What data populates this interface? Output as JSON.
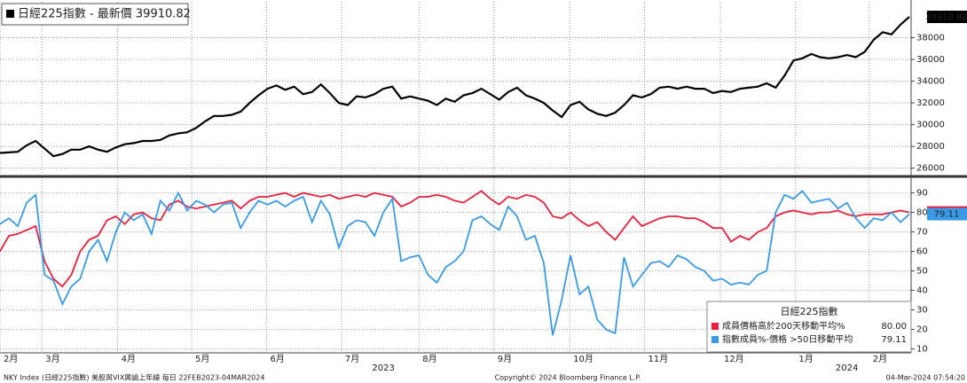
{
  "chart_data": [
    {
      "type": "line",
      "title": "日經225指數 - 最新價 39910.82",
      "color": "#000000",
      "last_label": "39910.82",
      "values": [
        27400,
        27450,
        27500,
        28100,
        28500,
        27800,
        27100,
        27300,
        27700,
        27700,
        28000,
        27700,
        27500,
        27900,
        28200,
        28300,
        28500,
        28500,
        28600,
        29000,
        29200,
        29300,
        29700,
        30300,
        30800,
        30800,
        30900,
        31200,
        32000,
        32700,
        33300,
        33600,
        33200,
        33500,
        32800,
        33000,
        33700,
        32900,
        32000,
        31800,
        32600,
        32500,
        32800,
        33300,
        33500,
        32400,
        32600,
        32400,
        32200,
        31800,
        32400,
        32100,
        32700,
        32900,
        33300,
        32800,
        32300,
        33000,
        33400,
        32700,
        32400,
        32000,
        31300,
        30700,
        31800,
        32100,
        31400,
        31000,
        30800,
        31100,
        31800,
        32700,
        32500,
        32800,
        33400,
        33500,
        33300,
        33500,
        33300,
        33300,
        32900,
        33100,
        33000,
        33300,
        33400,
        33500,
        33800,
        33400,
        34500,
        35900,
        36100,
        36500,
        36200,
        36100,
        36200,
        36400,
        36200,
        36700,
        37800,
        38500,
        38300,
        39200,
        39910.82
      ],
      "xlim": [
        0,
        102
      ],
      "ylim": [
        25400,
        41300
      ],
      "yticks": [
        26000,
        28000,
        30000,
        32000,
        34000,
        36000,
        38000
      ],
      "grid": true
    },
    {
      "type": "line",
      "legend_title": "日經225指數",
      "series": [
        {
          "name": "成員價格高於200天移動平均%",
          "color": "#e8213c",
          "last_label": "80.00",
          "values": [
            60,
            68,
            69,
            71,
            73,
            55,
            46,
            42,
            48,
            60,
            66,
            68,
            76,
            78,
            74,
            79,
            80,
            77,
            76,
            84,
            86,
            83,
            82,
            83,
            84,
            85,
            86,
            82,
            86,
            88,
            88,
            89,
            90,
            88,
            90,
            89,
            88,
            89,
            87,
            88,
            89,
            88,
            90,
            89,
            88,
            83,
            85,
            88,
            88,
            89,
            88,
            86,
            85,
            88,
            91,
            87,
            84,
            88,
            87,
            89,
            88,
            85,
            78,
            77,
            80,
            76,
            73,
            75,
            70,
            66,
            72,
            78,
            73,
            75,
            77,
            78,
            78,
            77,
            77,
            75,
            72,
            72,
            65,
            68,
            66,
            70,
            72,
            78,
            80,
            81,
            80,
            79,
            80,
            80,
            81,
            79,
            78,
            79,
            79,
            79,
            80,
            81,
            80
          ]
        },
        {
          "name": "指數成員%-價格 >50日移動平均",
          "color": "#3a9ae8",
          "last_label": "79.11",
          "values": [
            74,
            77,
            73,
            85,
            89,
            48,
            45,
            33,
            42,
            46,
            60,
            66,
            55,
            70,
            80,
            76,
            79,
            69,
            86,
            81,
            90,
            81,
            86,
            84,
            80,
            84,
            85,
            72,
            80,
            86,
            84,
            86,
            83,
            86,
            88,
            75,
            86,
            79,
            62,
            73,
            76,
            75,
            68,
            80,
            87,
            55,
            57,
            58,
            48,
            44,
            52,
            55,
            60,
            76,
            78,
            74,
            71,
            83,
            78,
            66,
            68,
            54,
            17,
            35,
            58,
            38,
            42,
            25,
            20,
            18,
            57,
            42,
            48,
            54,
            55,
            52,
            58,
            56,
            52,
            50,
            45,
            46,
            43,
            44,
            43,
            48,
            50,
            80,
            89,
            87,
            91,
            85,
            86,
            87,
            82,
            85,
            77,
            72,
            77,
            76,
            80,
            75,
            79.11
          ]
        }
      ],
      "xlim": [
        0,
        102
      ],
      "ylim": [
        8,
        98
      ],
      "yticks": [
        10,
        20,
        30,
        40,
        50,
        60,
        70,
        80,
        90
      ],
      "grid": true,
      "xticks": [
        {
          "value": 0,
          "label": "2月"
        },
        {
          "value": 4.7,
          "label": "3月"
        },
        {
          "value": 13.2,
          "label": "4月"
        },
        {
          "value": 21.5,
          "label": "5月"
        },
        {
          "value": 29.9,
          "label": "6月"
        },
        {
          "value": 38.3,
          "label": "7月"
        },
        {
          "value": 47,
          "label": "8月"
        },
        {
          "value": 55.4,
          "label": "9月"
        },
        {
          "value": 63.9,
          "label": "10月"
        },
        {
          "value": 72.3,
          "label": "11月"
        },
        {
          "value": 80.8,
          "label": "12月"
        },
        {
          "value": 89.2,
          "label": "1月"
        },
        {
          "value": 97.5,
          "label": "2月"
        }
      ],
      "year_labels": [
        {
          "value": 43,
          "label": "2023"
        },
        {
          "value": 95,
          "label": "2024"
        }
      ]
    }
  ],
  "footer": {
    "left": "NKY Index (日經225指數) 美股與VIX輿論上年線  每日 22FEB2023-04MAR2024",
    "center": "Copyright© 2024 Bloomberg Finance L.P.",
    "right": "04-Mar-2024 07:54:20"
  }
}
